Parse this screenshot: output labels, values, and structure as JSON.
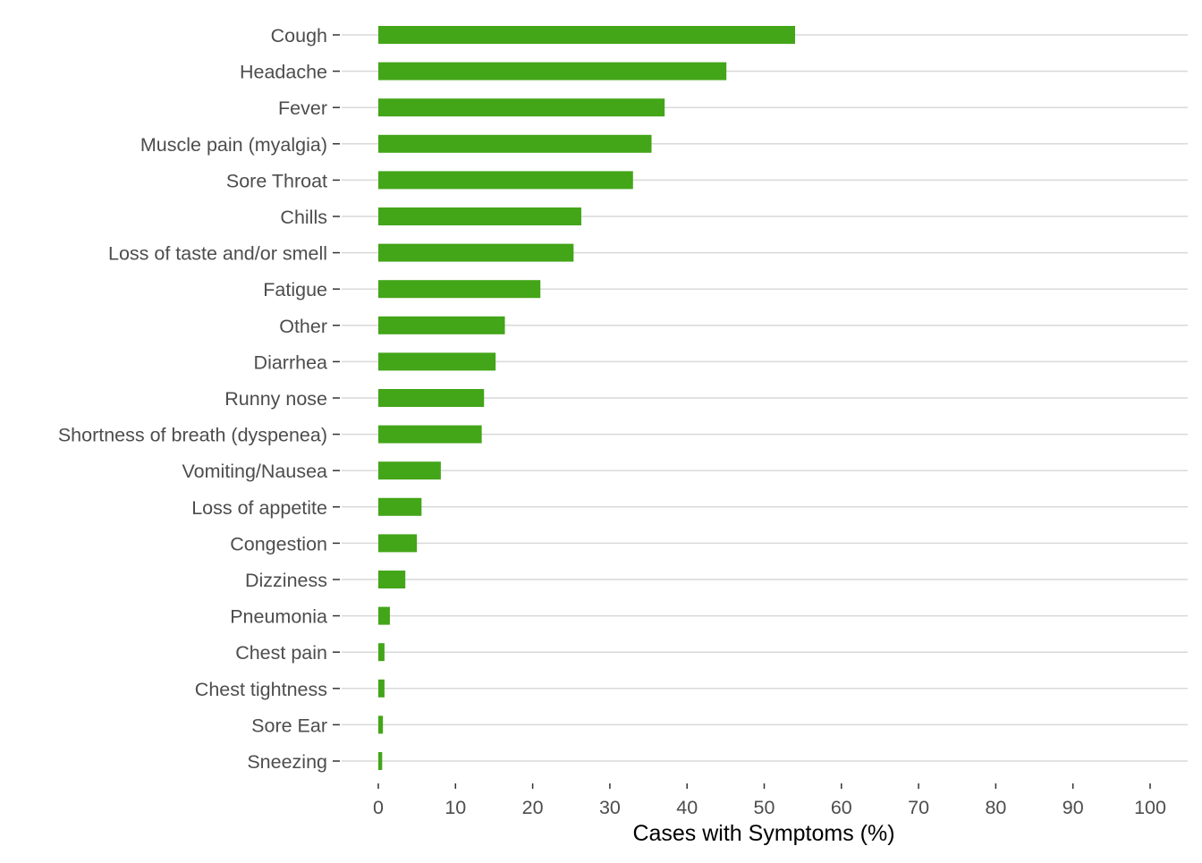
{
  "chart_data": {
    "type": "bar",
    "orientation": "horizontal",
    "categories": [
      "Cough",
      "Headache",
      "Fever",
      "Muscle pain (myalgia)",
      "Sore Throat",
      "Chills",
      "Loss of taste and/or smell",
      "Fatigue",
      "Other",
      "Diarrhea",
      "Runny nose",
      "Shortness of breath (dyspenea)",
      "Vomiting/Nausea",
      "Loss of appetite",
      "Congestion",
      "Dizziness",
      "Pneumonia",
      "Chest pain",
      "Chest tightness",
      "Sore Ear",
      "Sneezing"
    ],
    "values": [
      54.0,
      45.1,
      37.1,
      35.4,
      33.0,
      26.3,
      25.3,
      21.0,
      16.4,
      15.2,
      13.7,
      13.4,
      8.1,
      5.6,
      5.0,
      3.5,
      1.5,
      0.8,
      0.8,
      0.6,
      0.5
    ],
    "title": "",
    "xlabel": "Cases with Symptoms (%)",
    "ylabel": "",
    "xlim": [
      0,
      100
    ],
    "xticks": [
      0,
      10,
      20,
      30,
      40,
      50,
      60,
      70,
      80,
      90,
      100
    ],
    "grid": "horizontal",
    "colors": {
      "bar": "#43a518",
      "grid": "#d9d9d9",
      "tick_label": "#4d4d4d",
      "axis_title": "#000000",
      "tick_mark": "#333333"
    }
  }
}
